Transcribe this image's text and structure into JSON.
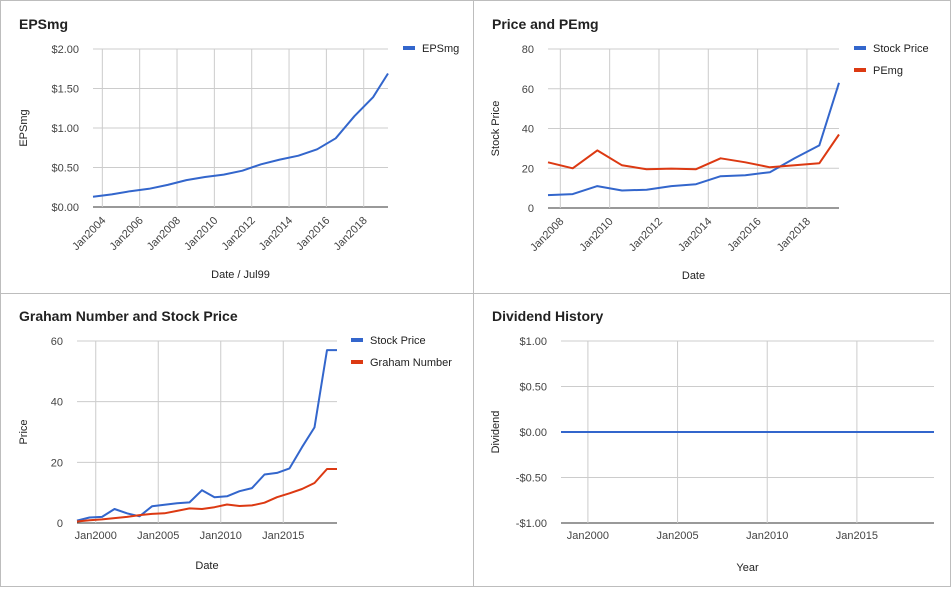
{
  "chart_data": [
    {
      "type": "line",
      "title": "EPSmg",
      "xlabel": "Date / Jul99",
      "ylabel": "EPSmg",
      "xlim": [
        2003.5,
        2019.3
      ],
      "ylim": [
        0,
        2
      ],
      "yticks": [
        0,
        0.5,
        1,
        1.5,
        2
      ],
      "ytick_labels": [
        "$0.00",
        "$0.50",
        "$1.00",
        "$1.50",
        "$2.00"
      ],
      "xticks": [
        2004,
        2006,
        2008,
        2010,
        2012,
        2014,
        2016,
        2018
      ],
      "xtick_labels": [
        "Jan2004",
        "Jan2006",
        "Jan2008",
        "Jan2010",
        "Jan2012",
        "Jan2014",
        "Jan2016",
        "Jan2018"
      ],
      "legend_position": "top-right",
      "colors": [
        "#3366cc"
      ],
      "series": [
        {
          "name": "EPSmg",
          "x": [
            2003.5,
            2004.5,
            2005.5,
            2006.5,
            2007.5,
            2008.5,
            2009.5,
            2010.5,
            2011.5,
            2012.5,
            2013.5,
            2014.5,
            2015.5,
            2016.5,
            2017.5,
            2018.5,
            2019.3
          ],
          "y": [
            0.13,
            0.16,
            0.2,
            0.23,
            0.28,
            0.34,
            0.38,
            0.41,
            0.46,
            0.54,
            0.6,
            0.65,
            0.73,
            0.87,
            1.15,
            1.39,
            1.69
          ]
        }
      ]
    },
    {
      "type": "line",
      "title": "Price and PEmg",
      "xlabel": "Date",
      "ylabel": "Stock Price",
      "xlim": [
        2007.5,
        2019.3
      ],
      "ylim": [
        0,
        80
      ],
      "yticks": [
        0,
        20,
        40,
        60,
        80
      ],
      "ytick_labels": [
        "0",
        "20",
        "40",
        "60",
        "80"
      ],
      "xticks": [
        2008,
        2010,
        2012,
        2014,
        2016,
        2018
      ],
      "xtick_labels": [
        "Jan2008",
        "Jan2010",
        "Jan2012",
        "Jan2014",
        "Jan2016",
        "Jan2018"
      ],
      "legend_position": "top-right",
      "colors": [
        "#3366cc",
        "#dc3912"
      ],
      "series": [
        {
          "name": "Stock Price",
          "x": [
            2007.5,
            2008.5,
            2009.5,
            2010.5,
            2011.5,
            2012.5,
            2013.5,
            2014.5,
            2015.5,
            2016.5,
            2017.5,
            2018.5,
            2019.3
          ],
          "y": [
            6.5,
            7,
            11,
            8.8,
            9.2,
            11,
            12,
            16,
            16.5,
            18,
            25,
            31.5,
            63
          ]
        },
        {
          "name": "PEmg",
          "x": [
            2007.5,
            2008.5,
            2009.5,
            2010.5,
            2011.5,
            2012.5,
            2013.5,
            2014.5,
            2015.5,
            2016.5,
            2017.5,
            2018.5,
            2019.3
          ],
          "y": [
            23,
            20,
            29,
            21.5,
            19.5,
            19.8,
            19.5,
            25,
            23,
            20.5,
            21.5,
            22.5,
            37
          ]
        }
      ]
    },
    {
      "type": "line",
      "title": "Graham Number and Stock Price",
      "xlabel": "Date",
      "ylabel": "Price",
      "xlim": [
        1998.5,
        2019.3
      ],
      "ylim": [
        0,
        60
      ],
      "yticks": [
        0,
        20,
        40,
        60
      ],
      "ytick_labels": [
        "0",
        "20",
        "40",
        "60"
      ],
      "xticks": [
        2000,
        2005,
        2010,
        2015
      ],
      "xtick_labels": [
        "Jan2000",
        "Jan2005",
        "Jan2010",
        "Jan2015"
      ],
      "legend_position": "top-right",
      "colors": [
        "#3366cc",
        "#dc3912"
      ],
      "series": [
        {
          "name": "Stock Price",
          "x": [
            1998.5,
            1999.5,
            2000.5,
            2001.5,
            2002.5,
            2003.5,
            2004.5,
            2005.5,
            2006.5,
            2007.5,
            2008.5,
            2009.5,
            2010.5,
            2011.5,
            2012.5,
            2013.5,
            2014.5,
            2015.5,
            2016.5,
            2017.5,
            2018.5,
            2019.3
          ],
          "y": [
            0.8,
            1.8,
            2.0,
            4.6,
            3.2,
            2.2,
            5.5,
            6.0,
            6.5,
            6.8,
            10.8,
            8.5,
            8.8,
            10.5,
            11.5,
            16.0,
            16.5,
            18.0,
            25.0,
            31.5,
            57.0,
            57.0
          ]
        },
        {
          "name": "Graham Number",
          "x": [
            1998.5,
            1999.5,
            2000.5,
            2001.5,
            2002.5,
            2003.5,
            2004.5,
            2005.5,
            2006.5,
            2007.5,
            2008.5,
            2009.5,
            2010.5,
            2011.5,
            2012.5,
            2013.5,
            2014.5,
            2015.5,
            2016.5,
            2017.5,
            2018.5,
            2019.3
          ],
          "y": [
            0.5,
            0.9,
            1.2,
            1.6,
            2.0,
            2.6,
            3.0,
            3.2,
            4.0,
            4.8,
            4.6,
            5.2,
            6.1,
            5.6,
            5.8,
            6.7,
            8.5,
            9.8,
            11.2,
            13.2,
            17.8,
            17.8
          ]
        }
      ]
    },
    {
      "type": "line",
      "title": "Dividend History",
      "xlabel": "Year",
      "ylabel": "Dividend",
      "xlim": [
        1998.5,
        2019.3
      ],
      "ylim": [
        -1,
        1
      ],
      "yticks": [
        -1,
        -0.5,
        0,
        0.5,
        1
      ],
      "ytick_labels": [
        "-$1.00",
        "-$0.50",
        "$0.00",
        "$0.50",
        "$1.00"
      ],
      "xticks": [
        2000,
        2005,
        2010,
        2015
      ],
      "xtick_labels": [
        "Jan2000",
        "Jan2005",
        "Jan2010",
        "Jan2015"
      ],
      "colors": [
        "#3366cc"
      ],
      "series": [
        {
          "x": [
            1998.5,
            2000.5,
            2002.5,
            2004.5,
            2006.5,
            2008.5,
            2010.5,
            2012.5,
            2014.5,
            2016.5,
            2017.5,
            2018.5,
            2019.3
          ],
          "y": [
            0,
            0,
            0,
            0,
            0,
            0,
            0,
            0,
            0,
            0,
            0,
            0,
            0
          ]
        }
      ]
    }
  ]
}
